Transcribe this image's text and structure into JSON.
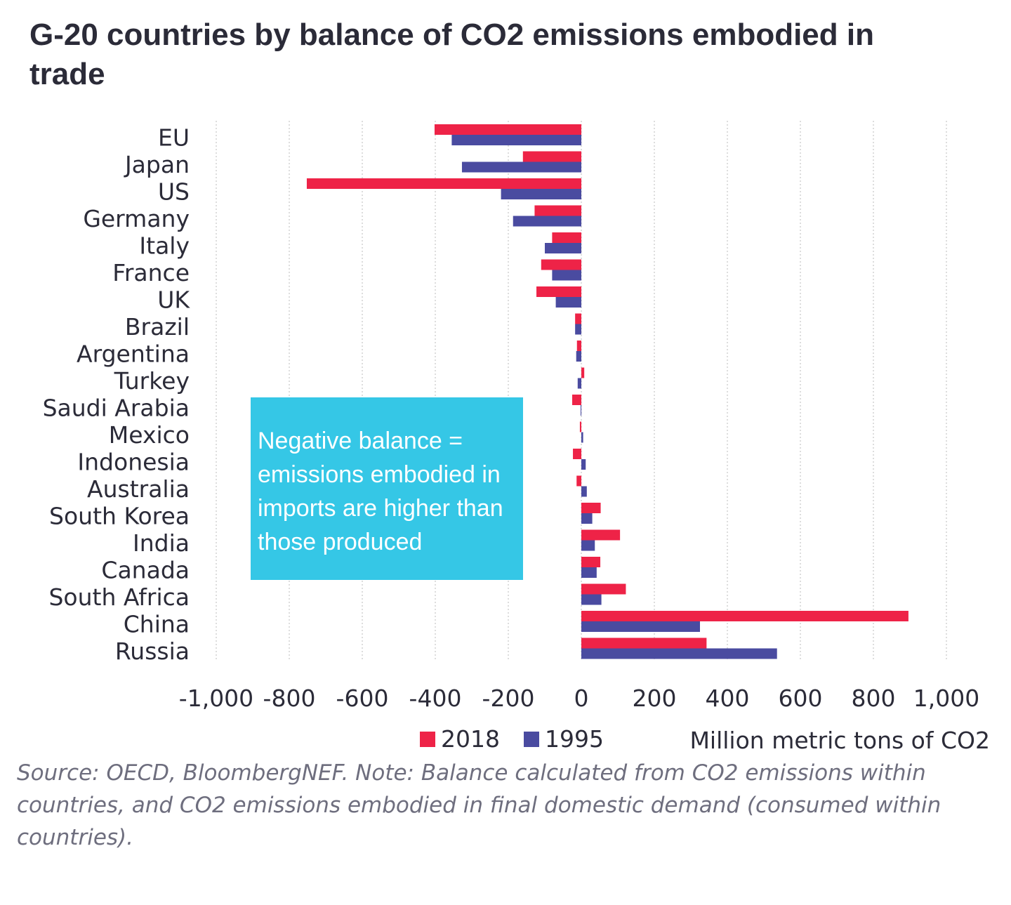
{
  "title": "G-20 countries by balance of CO2 emissions embodied in trade",
  "annotation": "Negative balance = emissions embodied in imports are higher than those produced",
  "source": "Source: OECD, BloombergNEF. Note: Balance calculated from CO2 emissions within countries, and CO2 emissions embodied in final domestic demand (consumed within countries).",
  "colors": {
    "series_2018": "#ee2347",
    "series_1995": "#4a4ba0",
    "annotation_bg": "#35c7e6",
    "grid": "#bbbbbb"
  },
  "chart_data": {
    "type": "bar",
    "orientation": "horizontal",
    "categories": [
      "EU",
      "Japan",
      "US",
      "Germany",
      "Italy",
      "France",
      "UK",
      "Brazil",
      "Argentina",
      "Turkey",
      "Saudi Arabia",
      "Mexico",
      "Indonesia",
      "Australia",
      "South Korea",
      "India",
      "Canada",
      "South Africa",
      "China",
      "Russia"
    ],
    "series": [
      {
        "name": "2018",
        "values": [
          -402,
          -160,
          -752,
          -128,
          -80,
          -110,
          -123,
          -17,
          -12,
          8,
          -25,
          -4,
          -23,
          -13,
          53,
          106,
          52,
          122,
          896,
          343
        ]
      },
      {
        "name": "1995",
        "values": [
          -355,
          -327,
          -220,
          -187,
          -100,
          -80,
          -70,
          -17,
          -14,
          -10,
          -2,
          5,
          12,
          15,
          30,
          37,
          42,
          55,
          325,
          536
        ]
      }
    ],
    "xlim": [
      -1000,
      1000
    ],
    "xticks": [
      -1000,
      -800,
      -600,
      -400,
      -200,
      0,
      200,
      400,
      600,
      800,
      1000
    ],
    "xtick_labels": [
      "-1,000",
      "-800",
      "-600",
      "-400",
      "-200",
      "0",
      "200",
      "400",
      "600",
      "800",
      "1,000"
    ],
    "xlabel": "Million metric tons of CO2",
    "grid": "vertical dotted",
    "legend_position": "bottom"
  }
}
